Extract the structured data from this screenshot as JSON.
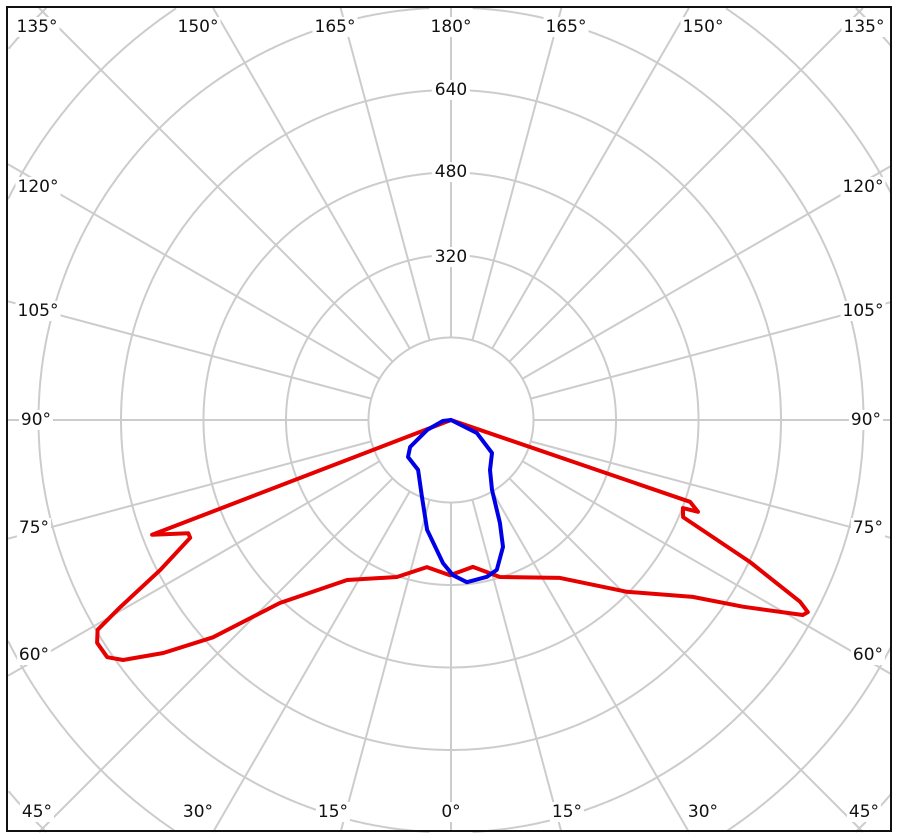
{
  "chart_data": {
    "type": "polar",
    "title": "",
    "angle_labels": {
      "top": [
        "135°",
        "150°",
        "165°",
        "180°",
        "165°",
        "150°",
        "135°"
      ],
      "left": [
        "120°",
        "105°",
        "90°",
        "75°",
        "60°"
      ],
      "right": [
        "120°",
        "105°",
        "90°",
        "75°",
        "60°"
      ],
      "bottom": [
        "45°",
        "30°",
        "15°",
        "0°",
        "15°",
        "30°",
        "45°"
      ]
    },
    "radial_labels": [
      "320",
      "480",
      "640"
    ],
    "radial_ticks": [
      160,
      320,
      480,
      640,
      800,
      960,
      1120
    ],
    "radial_label_values": [
      320,
      480,
      640
    ],
    "angle_step_deg": 15,
    "angle_convention": "0° points down, 180° points up; negative angles = left half",
    "series": [
      {
        "name": "red curve",
        "color": "#e60000",
        "points": [
          [
            -90,
            0
          ],
          [
            -69.0,
            621
          ],
          [
            -66.7,
            555
          ],
          [
            -65.7,
            555
          ],
          [
            -62.7,
            635
          ],
          [
            -60.5,
            737
          ],
          [
            -59.3,
            797
          ],
          [
            -57.8,
            811
          ],
          [
            -55.4,
            810
          ],
          [
            -53.8,
            788
          ],
          [
            -51.0,
            718
          ],
          [
            -47.6,
            625
          ],
          [
            -43.1,
            486
          ],
          [
            -33.0,
            370
          ],
          [
            -19.0,
            322
          ],
          [
            -9.3,
            289
          ],
          [
            -0.4,
            301
          ],
          [
            8.5,
            288
          ],
          [
            17.3,
            319
          ],
          [
            34.6,
            372
          ],
          [
            45.7,
            477
          ],
          [
            53.8,
            581
          ],
          [
            57.4,
            672
          ],
          [
            61.0,
            780
          ],
          [
            61.7,
            786
          ],
          [
            62.5,
            763
          ],
          [
            64.6,
            642
          ],
          [
            67.3,
            488
          ],
          [
            69.2,
            481
          ],
          [
            69.6,
            511
          ],
          [
            71.1,
            490
          ],
          [
            90,
            0
          ]
        ]
      },
      {
        "name": "blue curve",
        "color": "#0000e6",
        "points": [
          [
            180,
            0
          ],
          [
            63.4,
            56
          ],
          [
            51.2,
            102
          ],
          [
            38.0,
            123
          ],
          [
            30.4,
            157
          ],
          [
            25.4,
            221
          ],
          [
            22.3,
            266
          ],
          [
            17.0,
            304
          ],
          [
            12.9,
            312
          ],
          [
            5.6,
            316
          ],
          [
            0.7,
            301
          ],
          [
            -3.2,
            278
          ],
          [
            -12.3,
            218
          ],
          [
            -20.6,
            160
          ],
          [
            -33.4,
            116
          ],
          [
            -49.3,
            110
          ],
          [
            -56.6,
            95
          ],
          [
            -67.4,
            50
          ],
          [
            -82.9,
            16
          ],
          [
            180,
            0
          ]
        ]
      }
    ]
  }
}
